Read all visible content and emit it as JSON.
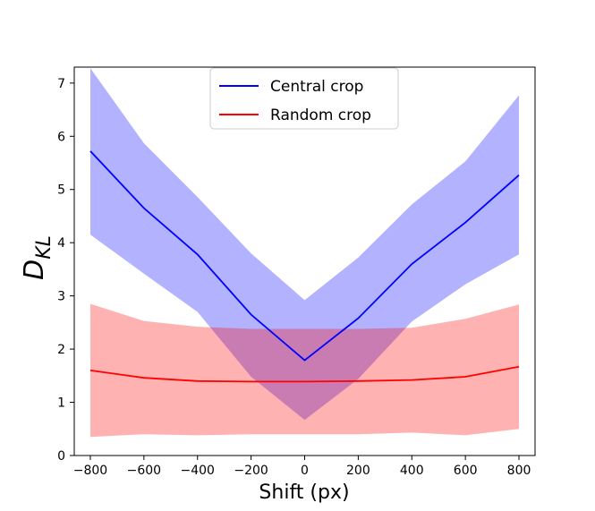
{
  "chart_data": {
    "type": "line",
    "title": "",
    "xlabel": "Shift (px)",
    "ylabel_main": "D",
    "ylabel_sub": "KL",
    "xlim": [
      -860,
      860
    ],
    "ylim": [
      0,
      7.3
    ],
    "x": [
      -800,
      -600,
      -400,
      -200,
      0,
      200,
      400,
      600,
      800
    ],
    "xticks": [
      -800,
      -600,
      -400,
      -200,
      0,
      200,
      400,
      600,
      800
    ],
    "xtick_labels": [
      "−800",
      "−600",
      "−400",
      "−200",
      "0",
      "200",
      "400",
      "600",
      "800"
    ],
    "yticks": [
      0,
      1,
      2,
      3,
      4,
      5,
      6,
      7
    ],
    "ytick_labels": [
      "0",
      "1",
      "2",
      "3",
      "4",
      "5",
      "6",
      "7"
    ],
    "grid": false,
    "legend_position": "top-center",
    "series": [
      {
        "name": "Central crop",
        "color": "#0000ff",
        "band_color": "#0000ff",
        "values": [
          5.72,
          4.65,
          3.78,
          2.65,
          1.79,
          2.58,
          3.6,
          4.38,
          5.27
        ],
        "lower": [
          4.15,
          3.42,
          2.7,
          1.48,
          0.67,
          1.44,
          2.52,
          3.22,
          3.78
        ],
        "upper": [
          7.28,
          5.87,
          4.86,
          3.8,
          2.92,
          3.72,
          4.72,
          5.53,
          6.77
        ]
      },
      {
        "name": "Random crop",
        "color": "#ff0000",
        "band_color": "#ff0000",
        "values": [
          1.6,
          1.46,
          1.4,
          1.39,
          1.39,
          1.4,
          1.42,
          1.48,
          1.67
        ],
        "lower": [
          0.35,
          0.4,
          0.38,
          0.4,
          0.4,
          0.4,
          0.43,
          0.38,
          0.5
        ],
        "upper": [
          2.85,
          2.53,
          2.42,
          2.38,
          2.38,
          2.38,
          2.4,
          2.57,
          2.84
        ]
      }
    ]
  }
}
